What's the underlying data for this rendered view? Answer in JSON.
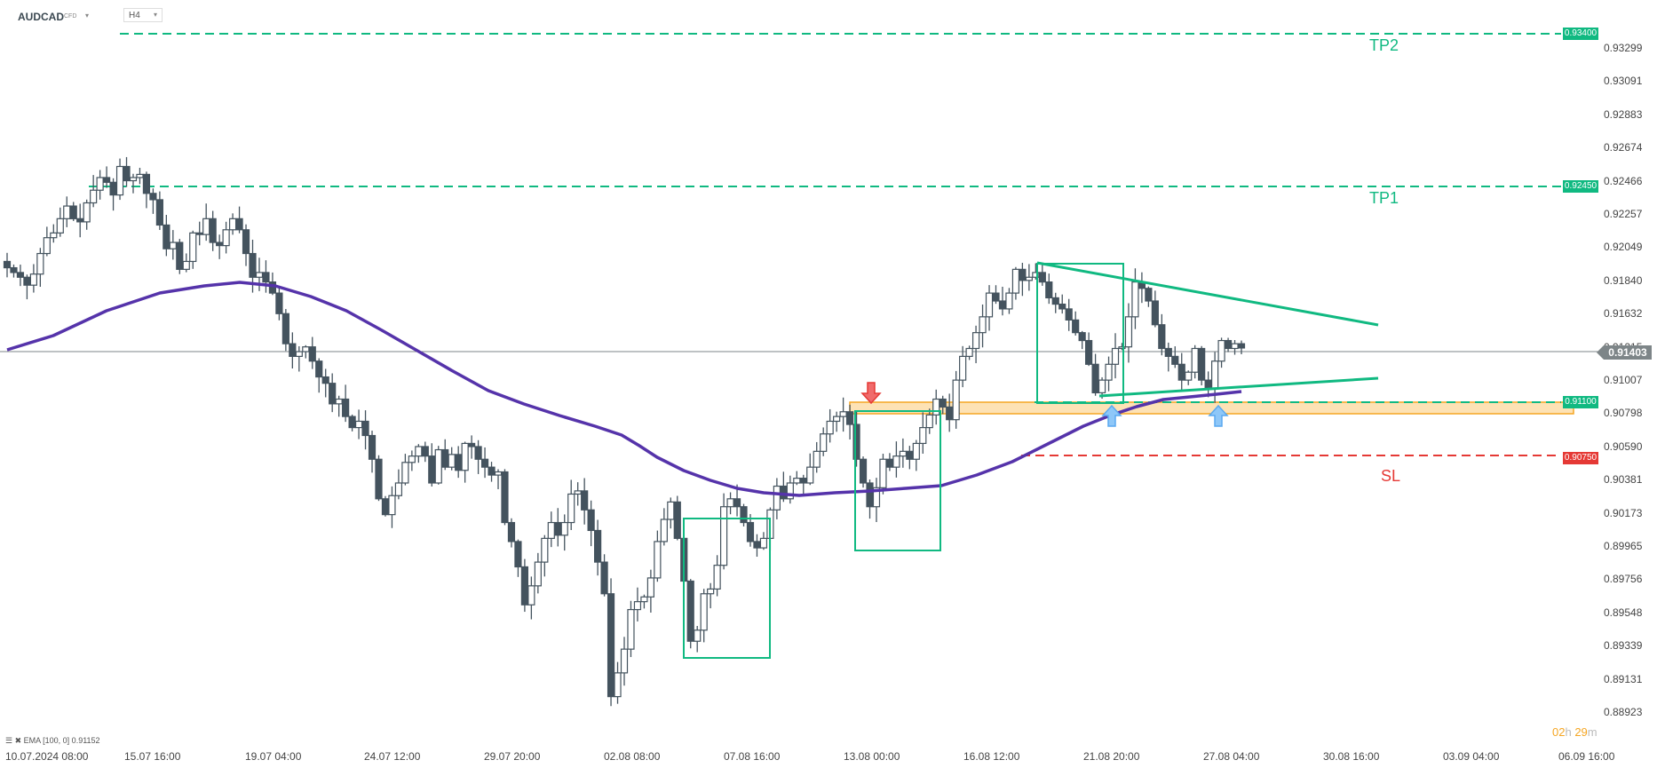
{
  "header": {
    "symbol": "AUDCAD",
    "symbol_type": "CFD",
    "timeframe": "H4",
    "caret": "▾"
  },
  "legend": {
    "ema_label": "EMA [100, 0] 0.91152"
  },
  "countdown": {
    "hours": "02",
    "h": "h",
    "minutes": "29",
    "m": "m"
  },
  "current_price": "0.91403",
  "levels": {
    "tp2": {
      "label": "TP2",
      "price": "0.93400",
      "color": "#10b981"
    },
    "tp1": {
      "label": "TP1",
      "price": "0.92450",
      "color": "#10b981"
    },
    "entry": {
      "price": "0.91100",
      "color": "#10b981"
    },
    "sl": {
      "label": "SL",
      "price": "0.90750",
      "color": "#e53935"
    }
  },
  "colors": {
    "bear": "#44535e",
    "bull_fill": "#ffffff",
    "ema": "#5533aa",
    "pattern": "#10b981",
    "zone_fill": "#fde2b5",
    "zone_border": "#f5a623",
    "down_arrow": "#e53935",
    "up_arrow": "#5aa9f0",
    "price_line": "#7d8588"
  },
  "chart_data": {
    "type": "candlestick",
    "title": "AUDCAD CFD H4",
    "xlabel": "",
    "ylabel": "",
    "ylim": [
      0.88923,
      0.934
    ],
    "y_ticks": [
      "0.93299",
      "0.93091",
      "0.92883",
      "0.92674",
      "0.92466",
      "0.92257",
      "0.92049",
      "0.91840",
      "0.91632",
      "0.91215",
      "0.91007",
      "0.90798",
      "0.90590",
      "0.90381",
      "0.90173",
      "0.89965",
      "0.89756",
      "0.89548",
      "0.89339",
      "0.89131",
      "0.88923"
    ],
    "x_ticks": [
      "10.07.2024  08:00",
      "15.07  16:00",
      "19.07  04:00",
      "24.07  12:00",
      "29.07  20:00",
      "02.08  08:00",
      "07.08  16:00",
      "13.08  00:00",
      "16.08  12:00",
      "21.08  20:00",
      "27.08  04:00",
      "30.08  16:00",
      "03.09  04:00",
      "06.09  16:00"
    ],
    "series": [
      {
        "name": "AUDCAD",
        "type": "candlestick",
        "last": 0.91403
      },
      {
        "name": "EMA 100",
        "type": "line",
        "last": 0.91152
      }
    ],
    "horizontal_levels": [
      {
        "name": "TP2",
        "value": 0.934
      },
      {
        "name": "TP1",
        "value": 0.9245
      },
      {
        "name": "Entry/Support",
        "value": 0.911
      },
      {
        "name": "SL",
        "value": 0.9075
      }
    ],
    "support_zone": [
      0.9103,
      0.911
    ],
    "annotations": [
      "red down arrow at resistance zone ~13.08",
      "blue up arrows at support ~21.08 and ~27.08",
      "symmetrical triangle pattern 19.08–30.08",
      "green rectangles around consolidation areas"
    ],
    "closes": [
      0.9191,
      0.9188,
      0.9185,
      0.918,
      0.9187,
      0.92,
      0.921,
      0.9213,
      0.9222,
      0.923,
      0.9222,
      0.922,
      0.9232,
      0.924,
      0.9248,
      0.9245,
      0.9237,
      0.9255,
      0.9246,
      0.9248,
      0.925,
      0.9238,
      0.9234,
      0.9218,
      0.9203,
      0.9207,
      0.919,
      0.9195,
      0.9213,
      0.9212,
      0.9222,
      0.9207,
      0.9205,
      0.9215,
      0.9222,
      0.9215,
      0.92,
      0.9185,
      0.9188,
      0.9182,
      0.9175,
      0.9162,
      0.9143,
      0.9135,
      0.9138,
      0.9141,
      0.9132,
      0.9122,
      0.9118,
      0.9105,
      0.9108,
      0.9097,
      0.909,
      0.9094,
      0.9085,
      0.907,
      0.9045,
      0.9035,
      0.9047,
      0.9055,
      0.9068,
      0.9072,
      0.9078,
      0.9072,
      0.9055,
      0.9076,
      0.9065,
      0.9073,
      0.9063,
      0.908,
      0.9078,
      0.907,
      0.9065,
      0.906,
      0.9062,
      0.903,
      0.9018,
      0.9002,
      0.8978,
      0.899,
      0.9005,
      0.902,
      0.903,
      0.9022,
      0.903,
      0.9048,
      0.905,
      0.9038,
      0.9025,
      0.9005,
      0.8985,
      0.892,
      0.8935,
      0.895,
      0.8975,
      0.898,
      0.8983,
      0.8995,
      0.9018,
      0.9032,
      0.9043,
      0.902,
      0.8993,
      0.8955,
      0.8962,
      0.8985,
      0.8988,
      0.9003,
      0.904,
      0.9045,
      0.904,
      0.903,
      0.9018,
      0.9014,
      0.902,
      0.9038,
      0.9053,
      0.9045,
      0.9055,
      0.9058,
      0.9055,
      0.9065,
      0.9075,
      0.9086,
      0.9094,
      0.9097,
      0.91,
      0.9092,
      0.907,
      0.9055,
      0.904,
      0.9052,
      0.907,
      0.9065,
      0.9072,
      0.9075,
      0.907,
      0.908,
      0.909,
      0.9098,
      0.9108,
      0.9103,
      0.9095,
      0.912,
      0.9135,
      0.914,
      0.915,
      0.916,
      0.9175,
      0.917,
      0.9165,
      0.9175,
      0.919,
      0.9183,
      0.9185,
      0.9188,
      0.9182,
      0.9172,
      0.9168,
      0.9165,
      0.9158,
      0.915,
      0.9145,
      0.913,
      0.9112,
      0.912,
      0.913,
      0.914,
      0.9141,
      0.916,
      0.9182,
      0.9178,
      0.917,
      0.9155,
      0.914,
      0.9135,
      0.913,
      0.912,
      0.9125,
      0.914,
      0.912,
      0.9115,
      0.9132,
      0.9145,
      0.914,
      0.9143,
      0.91403
    ]
  }
}
